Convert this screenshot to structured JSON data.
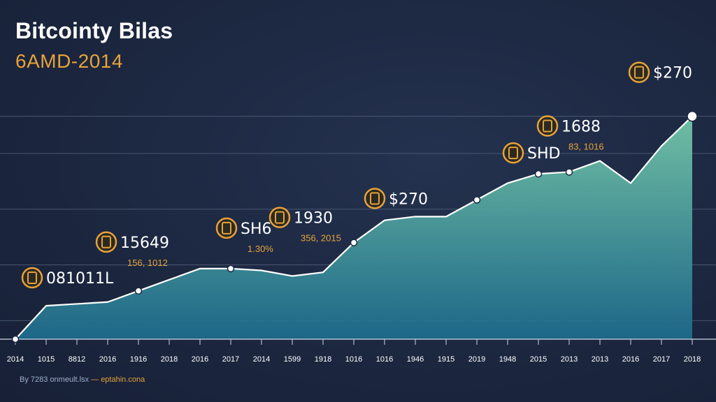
{
  "header": {
    "title": "Bitcointy Bilas",
    "subtitle": "6AMD-2014"
  },
  "footer": {
    "source": "By 7283 onmeult.lsx",
    "separator": "—",
    "site": "eptahin.cona"
  },
  "colors": {
    "background": "#1c2740",
    "area_top": "#74c6a8",
    "area_bottom": "#1d6a8c",
    "line": "#ffffff",
    "accent": "#e7a23a",
    "gridline": "#5d6a82"
  },
  "chart_data": {
    "type": "area",
    "title": "Bitcointy Bilas",
    "subtitle": "6AMD-2014",
    "categories": [
      "2014",
      "1015",
      "8812",
      "2016",
      "1916",
      "2018",
      "2016",
      "2017",
      "2014",
      "1599",
      "1918",
      "1016",
      "1016",
      "1946",
      "1915",
      "2019",
      "1948",
      "2015",
      "2013",
      "2013",
      "2016",
      "2017",
      "2018"
    ],
    "series": [
      {
        "name": "value",
        "values": [
          0,
          9,
          9.5,
          10,
          13,
          16,
          19,
          19,
          18.5,
          17,
          18,
          26,
          32,
          33,
          33,
          37.5,
          42,
          44.5,
          45,
          48,
          42,
          52,
          60
        ]
      }
    ],
    "ylim": [
      0,
      65
    ],
    "grid": true,
    "legend": "none",
    "annotations": [
      {
        "label": "081011L",
        "mini": "",
        "sub": "",
        "point_index": 0,
        "icon": "bitcoin-coin-icon"
      },
      {
        "label": "15649",
        "mini": "",
        "sub": "156, 1012",
        "point_index": 4,
        "icon": "shield-coin-icon"
      },
      {
        "label": "SH6",
        "mini": "",
        "sub": "1.30%",
        "point_index": 7,
        "icon": "coin-icon"
      },
      {
        "label": "1930",
        "mini": "",
        "sub": "356, 2015",
        "point_index": 11,
        "icon": "coin-icon"
      },
      {
        "label": "$270",
        "mini": "",
        "sub": "",
        "point_index": 15,
        "icon": "bitcoin-coin-icon"
      },
      {
        "label": "SHD",
        "mini": "",
        "sub": "",
        "point_index": 17,
        "icon": "coin-icon"
      },
      {
        "label": "1688",
        "mini": "",
        "sub": "83, 1016",
        "point_index": 18,
        "icon": "bitcoin-coin-icon"
      },
      {
        "label": "$270",
        "mini": "",
        "sub": "",
        "point_index": 22,
        "icon": "bitcoin-coin-icon"
      }
    ]
  }
}
